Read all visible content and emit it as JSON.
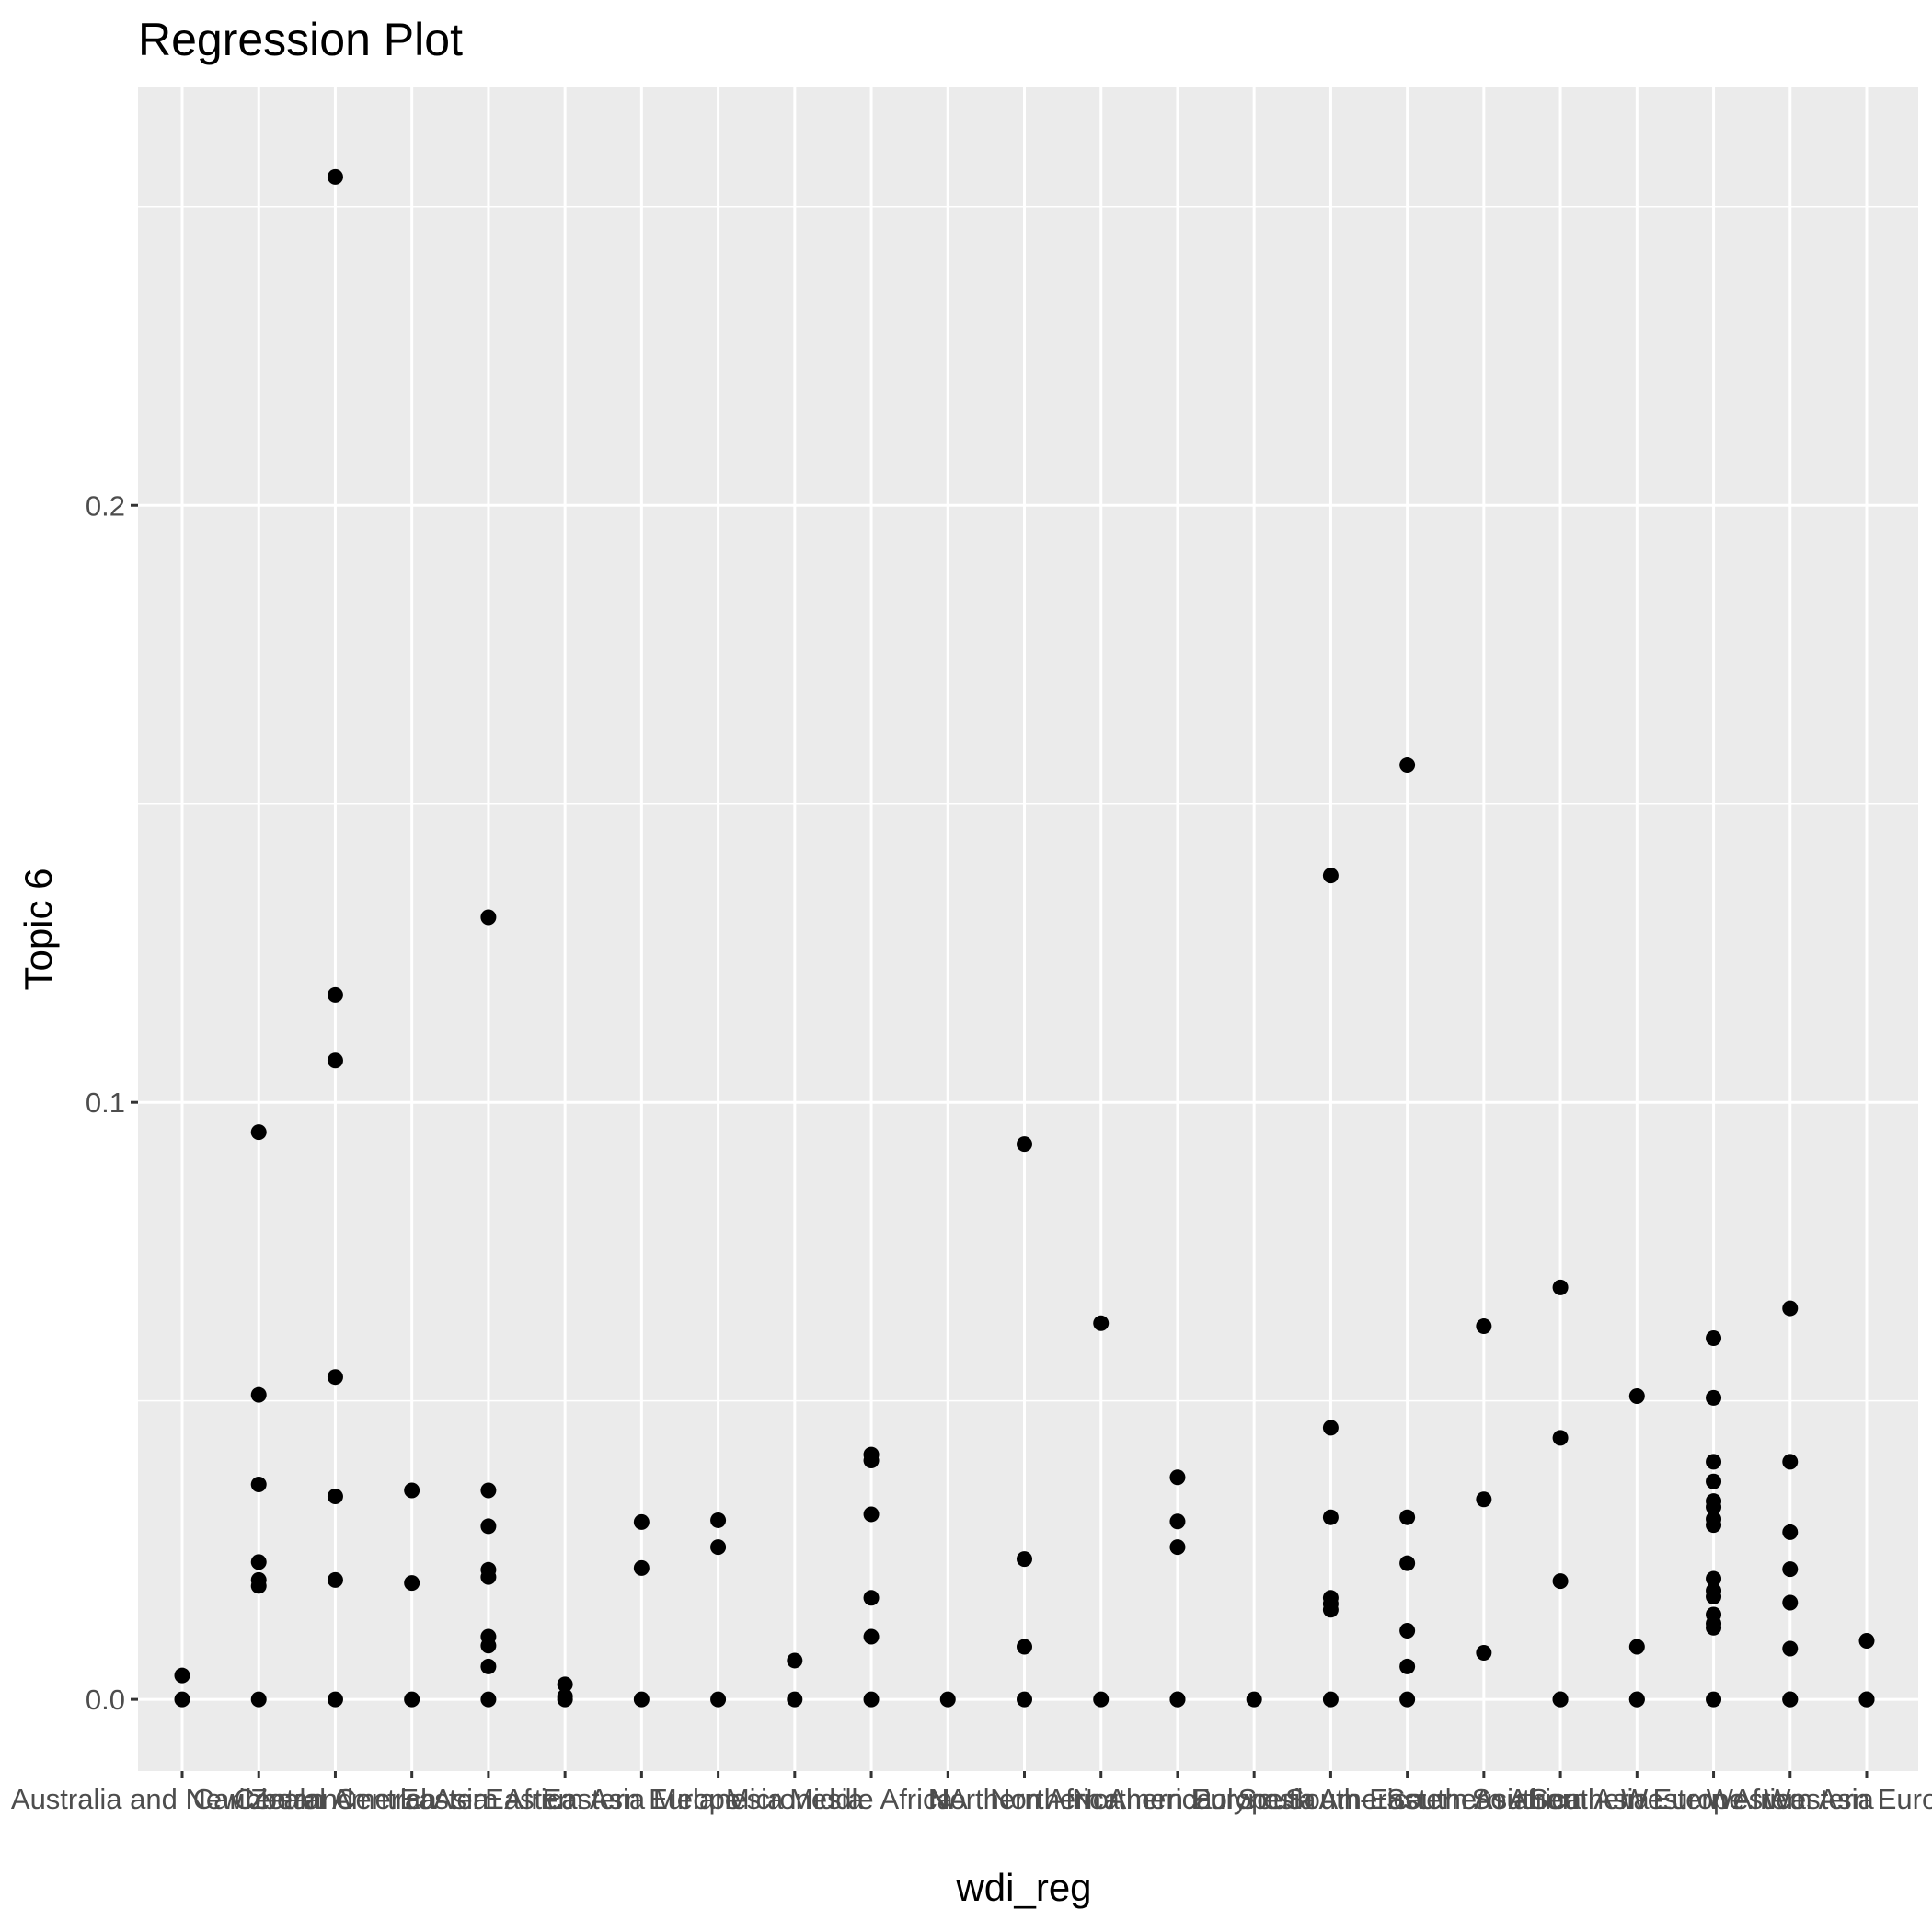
{
  "chart_data": {
    "type": "scatter",
    "title": "Regression Plot",
    "xlabel": "wdi_reg",
    "ylabel": "Topic 6",
    "ylim": [
      -0.012,
      0.27
    ],
    "yticks": [
      0.0,
      0.1,
      0.2
    ],
    "ytick_labels": [
      "0.0",
      "0.1",
      "0.2"
    ],
    "grid": true,
    "legend": "none",
    "colors": {
      "panel": "#ebebeb",
      "grid": "#ffffff",
      "point": "#000000",
      "tick_text": "#4d4d4d"
    },
    "categories": [
      "Australia and New Zealand",
      "Caribbean",
      "Central America",
      "Central Asia",
      "Eastern Africa",
      "Eastern Asia",
      "Eastern Europe",
      "Melanesia",
      "Micronesia",
      "Middle Africa",
      "NA",
      "Northern Africa",
      "Northern America",
      "Northern Europe",
      "Polynesia",
      "South America",
      "South-Eastern Asia",
      "Southern Africa",
      "Southern Asia",
      "Southern Europe",
      "Western Africa",
      "Western Asia",
      "Western Europe"
    ],
    "points": [
      [
        0,
        0.0
      ],
      [
        0,
        0.004
      ],
      [
        1,
        0.0
      ],
      [
        1,
        0.019
      ],
      [
        1,
        0.02
      ],
      [
        1,
        0.023
      ],
      [
        1,
        0.036
      ],
      [
        1,
        0.051
      ],
      [
        1,
        0.095
      ],
      [
        2,
        0.0
      ],
      [
        2,
        0.02
      ],
      [
        2,
        0.034
      ],
      [
        2,
        0.054
      ],
      [
        2,
        0.107
      ],
      [
        2,
        0.118
      ],
      [
        2,
        0.255
      ],
      [
        3,
        0.0
      ],
      [
        3,
        0.0195
      ],
      [
        3,
        0.035
      ],
      [
        4,
        0.0
      ],
      [
        4,
        0.0055
      ],
      [
        4,
        0.009
      ],
      [
        4,
        0.0105
      ],
      [
        4,
        0.0205
      ],
      [
        4,
        0.0217
      ],
      [
        4,
        0.029
      ],
      [
        4,
        0.035
      ],
      [
        4,
        0.131
      ],
      [
        5,
        0.0
      ],
      [
        5,
        0.0005
      ],
      [
        5,
        0.0025
      ],
      [
        6,
        0.0
      ],
      [
        6,
        0.022
      ],
      [
        6,
        0.0297
      ],
      [
        7,
        0.0
      ],
      [
        7,
        0.0255
      ],
      [
        7,
        0.03
      ],
      [
        8,
        0.0
      ],
      [
        8,
        0.0065
      ],
      [
        9,
        0.0
      ],
      [
        9,
        0.0105
      ],
      [
        9,
        0.017
      ],
      [
        9,
        0.031
      ],
      [
        9,
        0.04
      ],
      [
        9,
        0.041
      ],
      [
        10,
        0.0
      ],
      [
        11,
        0.0
      ],
      [
        11,
        0.0088
      ],
      [
        11,
        0.0235
      ],
      [
        11,
        0.093
      ],
      [
        12,
        0.0
      ],
      [
        12,
        0.063
      ],
      [
        13,
        0.0
      ],
      [
        13,
        0.0
      ],
      [
        13,
        0.0255
      ],
      [
        13,
        0.0298
      ],
      [
        13,
        0.0372
      ],
      [
        14,
        0.0
      ],
      [
        15,
        0.0
      ],
      [
        15,
        0.015
      ],
      [
        15,
        0.016
      ],
      [
        15,
        0.017
      ],
      [
        15,
        0.0305
      ],
      [
        15,
        0.0455
      ],
      [
        15,
        0.138
      ],
      [
        16,
        0.0
      ],
      [
        16,
        0.0055
      ],
      [
        16,
        0.0115
      ],
      [
        16,
        0.0228
      ],
      [
        16,
        0.0305
      ],
      [
        16,
        0.1565
      ],
      [
        17,
        0.0078
      ],
      [
        17,
        0.0335
      ],
      [
        17,
        0.0625
      ],
      [
        18,
        0.0
      ],
      [
        18,
        0.0
      ],
      [
        18,
        0.0198
      ],
      [
        18,
        0.0438
      ],
      [
        18,
        0.069
      ],
      [
        19,
        0.0
      ],
      [
        19,
        0.0
      ],
      [
        19,
        0.0088
      ],
      [
        19,
        0.0508
      ],
      [
        20,
        0.0
      ],
      [
        20,
        0.012
      ],
      [
        20,
        0.0127
      ],
      [
        20,
        0.0142
      ],
      [
        20,
        0.0172
      ],
      [
        20,
        0.0182
      ],
      [
        20,
        0.0202
      ],
      [
        20,
        0.0292
      ],
      [
        20,
        0.0302
      ],
      [
        20,
        0.0322
      ],
      [
        20,
        0.0332
      ],
      [
        20,
        0.0365
      ],
      [
        20,
        0.0398
      ],
      [
        20,
        0.0505
      ],
      [
        20,
        0.0605
      ],
      [
        21,
        0.0
      ],
      [
        21,
        0.0
      ],
      [
        21,
        0.0085
      ],
      [
        21,
        0.0162
      ],
      [
        21,
        0.0218
      ],
      [
        21,
        0.028
      ],
      [
        21,
        0.0398
      ],
      [
        21,
        0.0655
      ],
      [
        22,
        0.0
      ],
      [
        22,
        0.0
      ],
      [
        22,
        0.0098
      ]
    ]
  }
}
